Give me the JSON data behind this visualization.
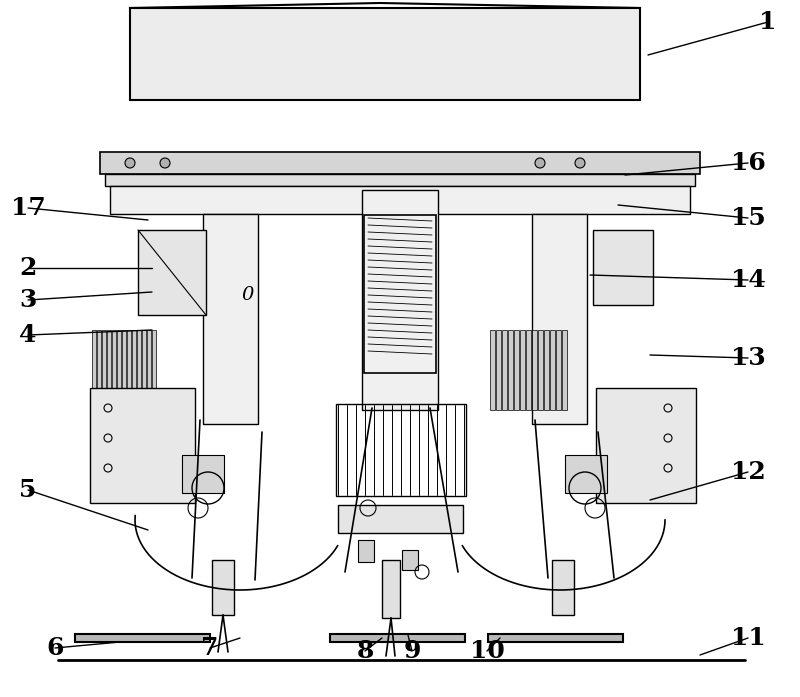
{
  "figure_width": 8.0,
  "figure_height": 6.97,
  "dpi": 100,
  "background_color": "#ffffff",
  "label_fontsize": 18,
  "label_color": "#000000",
  "line_color": "#000000",
  "annotation_data": [
    [
      "1",
      768,
      22,
      648,
      55
    ],
    [
      "16",
      748,
      163,
      625,
      175
    ],
    [
      "15",
      748,
      218,
      618,
      205
    ],
    [
      "14",
      748,
      280,
      590,
      275
    ],
    [
      "13",
      748,
      358,
      650,
      355
    ],
    [
      "12",
      748,
      472,
      650,
      500
    ],
    [
      "11",
      748,
      638,
      700,
      655
    ],
    [
      "17",
      28,
      208,
      148,
      220
    ],
    [
      "2",
      28,
      268,
      152,
      268
    ],
    [
      "3",
      28,
      300,
      152,
      292
    ],
    [
      "4",
      28,
      335,
      152,
      330
    ],
    [
      "5",
      28,
      490,
      148,
      530
    ],
    [
      "6",
      55,
      648,
      120,
      642
    ],
    [
      "7",
      210,
      648,
      240,
      638
    ],
    [
      "8",
      365,
      651,
      382,
      638
    ],
    [
      "9",
      412,
      651,
      408,
      635
    ],
    [
      "10",
      487,
      651,
      500,
      638
    ]
  ]
}
